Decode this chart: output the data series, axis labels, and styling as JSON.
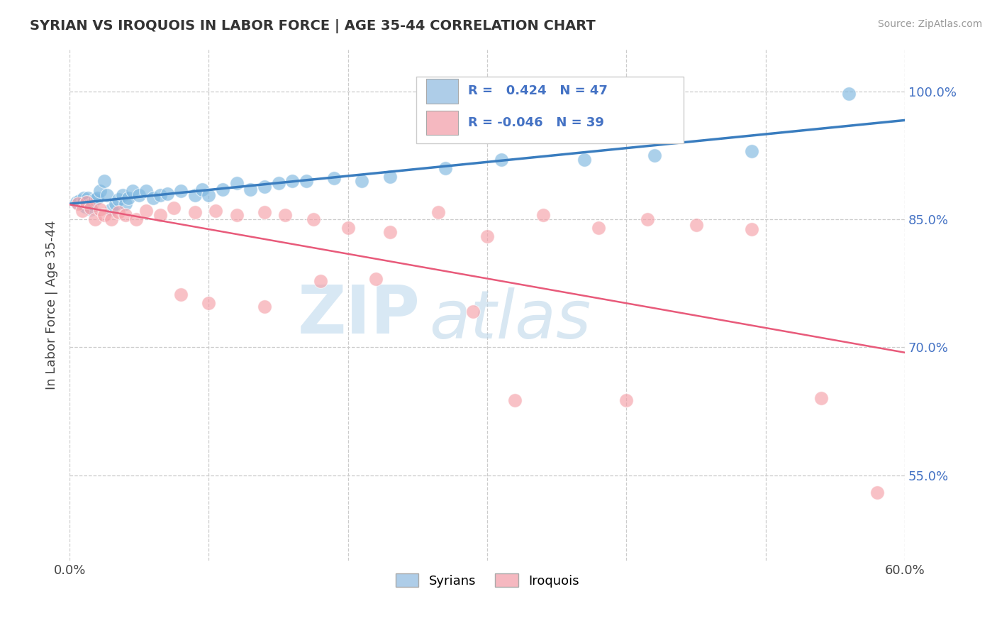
{
  "title": "SYRIAN VS IROQUOIS IN LABOR FORCE | AGE 35-44 CORRELATION CHART",
  "source": "Source: ZipAtlas.com",
  "ylabel": "In Labor Force | Age 35-44",
  "xlim": [
    0.0,
    0.6
  ],
  "ylim": [
    0.45,
    1.05
  ],
  "x_ticks": [
    0.0,
    0.1,
    0.2,
    0.3,
    0.4,
    0.5,
    0.6
  ],
  "x_tick_labels": [
    "0.0%",
    "",
    "",
    "",
    "",
    "",
    "60.0%"
  ],
  "y_ticks": [
    0.55,
    0.7,
    0.85,
    1.0
  ],
  "y_tick_labels": [
    "55.0%",
    "70.0%",
    "85.0%",
    "100.0%"
  ],
  "R_syrian": 0.424,
  "N_syrian": 47,
  "R_iroquois": -0.046,
  "N_iroquois": 39,
  "syrian_color": "#7fb8e0",
  "iroquois_color": "#f5a0a8",
  "line_syrian_color": "#3a7dbf",
  "line_iroquois_color": "#e85a7a",
  "syrian_x": [
    0.005,
    0.007,
    0.009,
    0.01,
    0.011,
    0.012,
    0.013,
    0.014,
    0.015,
    0.016,
    0.018,
    0.02,
    0.022,
    0.025,
    0.027,
    0.03,
    0.033,
    0.035,
    0.038,
    0.04,
    0.042,
    0.045,
    0.05,
    0.055,
    0.06,
    0.065,
    0.07,
    0.08,
    0.09,
    0.095,
    0.1,
    0.11,
    0.12,
    0.13,
    0.14,
    0.15,
    0.16,
    0.17,
    0.19,
    0.21,
    0.23,
    0.27,
    0.31,
    0.37,
    0.42,
    0.49,
    0.56
  ],
  "syrian_y": [
    0.87,
    0.872,
    0.868,
    0.875,
    0.865,
    0.87,
    0.875,
    0.867,
    0.862,
    0.868,
    0.873,
    0.875,
    0.883,
    0.895,
    0.878,
    0.862,
    0.868,
    0.873,
    0.878,
    0.868,
    0.875,
    0.883,
    0.878,
    0.883,
    0.875,
    0.878,
    0.88,
    0.883,
    0.878,
    0.885,
    0.878,
    0.885,
    0.892,
    0.885,
    0.888,
    0.892,
    0.895,
    0.895,
    0.898,
    0.895,
    0.9,
    0.91,
    0.92,
    0.92,
    0.925,
    0.93,
    0.997
  ],
  "iroquois_x": [
    0.006,
    0.009,
    0.012,
    0.015,
    0.018,
    0.022,
    0.025,
    0.03,
    0.035,
    0.04,
    0.048,
    0.055,
    0.065,
    0.075,
    0.09,
    0.105,
    0.12,
    0.14,
    0.155,
    0.175,
    0.2,
    0.23,
    0.265,
    0.3,
    0.34,
    0.38,
    0.415,
    0.45,
    0.49,
    0.08,
    0.1,
    0.14,
    0.18,
    0.22,
    0.29,
    0.32,
    0.4,
    0.54,
    0.58
  ],
  "iroquois_y": [
    0.868,
    0.86,
    0.87,
    0.863,
    0.85,
    0.862,
    0.855,
    0.85,
    0.858,
    0.855,
    0.85,
    0.86,
    0.855,
    0.863,
    0.858,
    0.86,
    0.855,
    0.858,
    0.855,
    0.85,
    0.84,
    0.835,
    0.858,
    0.83,
    0.855,
    0.84,
    0.85,
    0.843,
    0.838,
    0.762,
    0.752,
    0.748,
    0.778,
    0.78,
    0.742,
    0.638,
    0.638,
    0.64,
    0.53
  ],
  "watermark_zip": "ZIP",
  "watermark_atlas": "atlas",
  "legend_syrian_label": "Syrians",
  "legend_iroquois_label": "Iroquois",
  "background_color": "#ffffff",
  "grid_color": "#cccccc"
}
